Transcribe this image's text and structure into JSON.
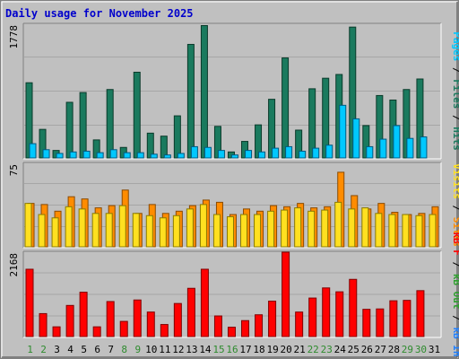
{
  "title": "Daily usage for November 2025",
  "colors": {
    "background": "#c0c0c0",
    "title": "#0000cc",
    "pages": "#00c8ff",
    "files": "#1a7a5e",
    "hits": "#1a7a5e",
    "visits": "#ffe020",
    "sites": "#ff8c00",
    "kb_in": "#2080ff",
    "kb_out": "#2ea02e",
    "kb_f": "#ff0000",
    "weekend_day": "#2e8b2e",
    "weekday": "#000000"
  },
  "chart_data": [
    {
      "type": "bar",
      "panel": "hits",
      "ymax_label": "1778",
      "ylim": [
        0,
        1778
      ],
      "legend": [
        {
          "key": "pages",
          "label": "Pages"
        },
        {
          "key": "sep",
          "label": " / "
        },
        {
          "key": "files",
          "label": "Files"
        },
        {
          "key": "sep",
          "label": " / "
        },
        {
          "key": "hits",
          "label": "Hits"
        }
      ],
      "categories": [
        "1",
        "2",
        "3",
        "4",
        "5",
        "6",
        "7",
        "8",
        "9",
        "10",
        "11",
        "12",
        "13",
        "14",
        "15",
        "16",
        "17",
        "18",
        "19",
        "20",
        "21",
        "22",
        "23",
        "24",
        "25",
        "26",
        "27",
        "28",
        "29",
        "30",
        "31"
      ],
      "series": [
        {
          "name": "Hits",
          "values": [
            1000,
            380,
            100,
            740,
            870,
            240,
            910,
            140,
            1140,
            330,
            290,
            560,
            1510,
            1760,
            420,
            80,
            220,
            440,
            780,
            1330,
            370,
            920,
            1060,
            1110,
            1740,
            430,
            830,
            770,
            910,
            1050,
            0
          ]
        },
        {
          "name": "Files",
          "values": [
            0,
            0,
            0,
            0,
            0,
            0,
            0,
            0,
            0,
            0,
            0,
            0,
            0,
            0,
            0,
            0,
            0,
            0,
            0,
            0,
            0,
            0,
            0,
            0,
            0,
            0,
            0,
            0,
            0,
            0,
            0
          ]
        },
        {
          "name": "Pages",
          "values": [
            190,
            110,
            60,
            80,
            90,
            70,
            110,
            70,
            70,
            50,
            40,
            60,
            150,
            140,
            100,
            40,
            100,
            80,
            130,
            150,
            90,
            130,
            170,
            700,
            520,
            150,
            250,
            430,
            260,
            280,
            0
          ]
        }
      ]
    },
    {
      "type": "bar",
      "panel": "visits",
      "ymax_label": "75",
      "ylim": [
        0,
        75
      ],
      "legend": [
        {
          "key": "visits",
          "label": "Visits"
        },
        {
          "key": "sep",
          "label": " / "
        },
        {
          "key": "sites",
          "label": "Sites"
        }
      ],
      "categories": [
        "1",
        "2",
        "3",
        "4",
        "5",
        "6",
        "7",
        "8",
        "9",
        "10",
        "11",
        "12",
        "13",
        "14",
        "15",
        "16",
        "17",
        "18",
        "19",
        "20",
        "21",
        "22",
        "23",
        "24",
        "25",
        "26",
        "27",
        "28",
        "29",
        "30",
        "31"
      ],
      "series": [
        {
          "name": "Sites",
          "values": [
            39,
            38,
            32,
            45,
            43,
            35,
            37,
            51,
            30,
            38,
            30,
            32,
            37,
            42,
            40,
            29,
            34,
            32,
            37,
            36,
            39,
            35,
            36,
            67,
            46,
            34,
            39,
            31,
            29,
            30,
            36
          ]
        },
        {
          "name": "Visits",
          "values": [
            39,
            29,
            26,
            36,
            34,
            30,
            30,
            37,
            30,
            28,
            26,
            28,
            34,
            38,
            29,
            27,
            29,
            29,
            32,
            33,
            35,
            32,
            33,
            40,
            34,
            35,
            30,
            29,
            29,
            28,
            29
          ]
        }
      ]
    },
    {
      "type": "bar",
      "panel": "kbytes",
      "ymax_label": "2168",
      "ylim": [
        0,
        2168
      ],
      "legend": [
        {
          "key": "kb_f",
          "label": "kB F"
        },
        {
          "key": "sep",
          "label": " / "
        },
        {
          "key": "kb_out",
          "label": "kB Out"
        },
        {
          "key": "sep",
          "label": " / "
        },
        {
          "key": "kb_in",
          "label": "kB In"
        }
      ],
      "categories": [
        "1",
        "2",
        "3",
        "4",
        "5",
        "6",
        "7",
        "8",
        "9",
        "10",
        "11",
        "12",
        "13",
        "14",
        "15",
        "16",
        "17",
        "18",
        "19",
        "20",
        "21",
        "22",
        "23",
        "24",
        "25",
        "26",
        "27",
        "28",
        "29",
        "30",
        "31"
      ],
      "series": [
        {
          "name": "kB F",
          "values": [
            1730,
            590,
            250,
            800,
            1140,
            250,
            900,
            390,
            940,
            630,
            310,
            850,
            1240,
            1730,
            530,
            240,
            410,
            560,
            910,
            2168,
            630,
            990,
            1250,
            1150,
            1470,
            700,
            710,
            920,
            930,
            1180,
            0
          ]
        }
      ]
    }
  ],
  "weekend_days": [
    1,
    2,
    8,
    9,
    15,
    16,
    22,
    23,
    29,
    30
  ]
}
